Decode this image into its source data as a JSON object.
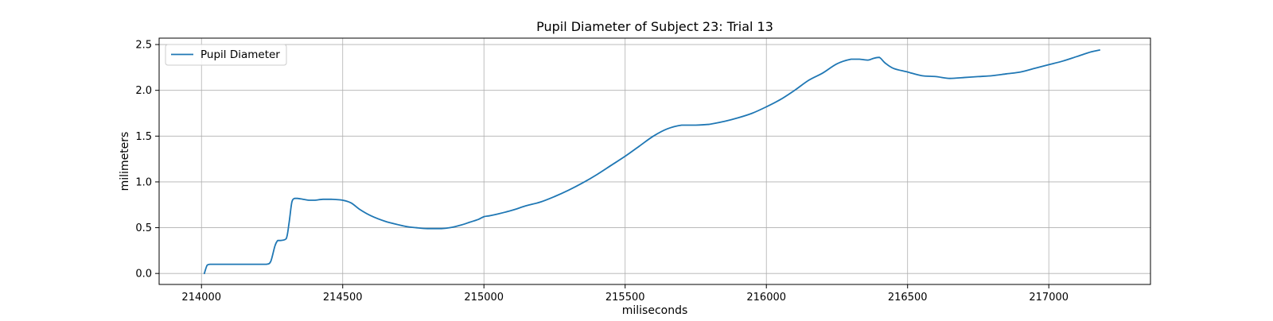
{
  "chart_data": {
    "type": "line",
    "title": "Pupil Diameter of Subject 23: Trial 13",
    "xlabel": "miliseconds",
    "ylabel": "milimeters",
    "xlim": [
      213850,
      217360
    ],
    "ylim": [
      -0.12,
      2.57
    ],
    "x_ticks": [
      214000,
      214500,
      215000,
      215500,
      216000,
      216500,
      217000
    ],
    "x_tick_labels": [
      "214000",
      "214500",
      "215000",
      "215500",
      "216000",
      "216500",
      "217000"
    ],
    "y_ticks": [
      0.0,
      0.5,
      1.0,
      1.5,
      2.0,
      2.5
    ],
    "y_tick_labels": [
      "0.0",
      "0.5",
      "1.0",
      "1.5",
      "2.0",
      "2.5"
    ],
    "grid": true,
    "legend_position": "upper-left",
    "series": [
      {
        "name": "Pupil Diameter",
        "color": "#1f77b4",
        "x": [
          214010,
          214020,
          214030,
          214050,
          214100,
          214150,
          214200,
          214230,
          214245,
          214260,
          214270,
          214280,
          214300,
          214310,
          214320,
          214330,
          214340,
          214360,
          214380,
          214400,
          214430,
          214460,
          214500,
          214530,
          214560,
          214600,
          214650,
          214700,
          214730,
          214760,
          214800,
          214850,
          214880,
          214920,
          214950,
          214980,
          215000,
          215020,
          215050,
          215100,
          215150,
          215200,
          215250,
          215300,
          215350,
          215400,
          215450,
          215500,
          215550,
          215600,
          215650,
          215700,
          215750,
          215800,
          215850,
          215900,
          215950,
          216000,
          216050,
          216100,
          216150,
          216200,
          216250,
          216300,
          216330,
          216360,
          216380,
          216400,
          216420,
          216450,
          216500,
          216550,
          216600,
          216650,
          216700,
          216750,
          216800,
          216850,
          216900,
          216950,
          217000,
          217050,
          217100,
          217150,
          217180
        ],
        "y": [
          0.0,
          0.09,
          0.1,
          0.1,
          0.1,
          0.1,
          0.1,
          0.1,
          0.13,
          0.3,
          0.36,
          0.36,
          0.38,
          0.55,
          0.78,
          0.82,
          0.82,
          0.81,
          0.8,
          0.8,
          0.81,
          0.81,
          0.8,
          0.77,
          0.7,
          0.63,
          0.57,
          0.53,
          0.51,
          0.5,
          0.49,
          0.49,
          0.5,
          0.53,
          0.56,
          0.59,
          0.62,
          0.63,
          0.65,
          0.69,
          0.74,
          0.78,
          0.84,
          0.91,
          0.99,
          1.08,
          1.18,
          1.28,
          1.39,
          1.5,
          1.58,
          1.62,
          1.62,
          1.63,
          1.66,
          1.7,
          1.75,
          1.82,
          1.9,
          2.0,
          2.11,
          2.19,
          2.29,
          2.34,
          2.34,
          2.33,
          2.35,
          2.36,
          2.3,
          2.24,
          2.2,
          2.16,
          2.15,
          2.13,
          2.14,
          2.15,
          2.16,
          2.18,
          2.2,
          2.24,
          2.28,
          2.32,
          2.37,
          2.42,
          2.44
        ]
      }
    ]
  }
}
